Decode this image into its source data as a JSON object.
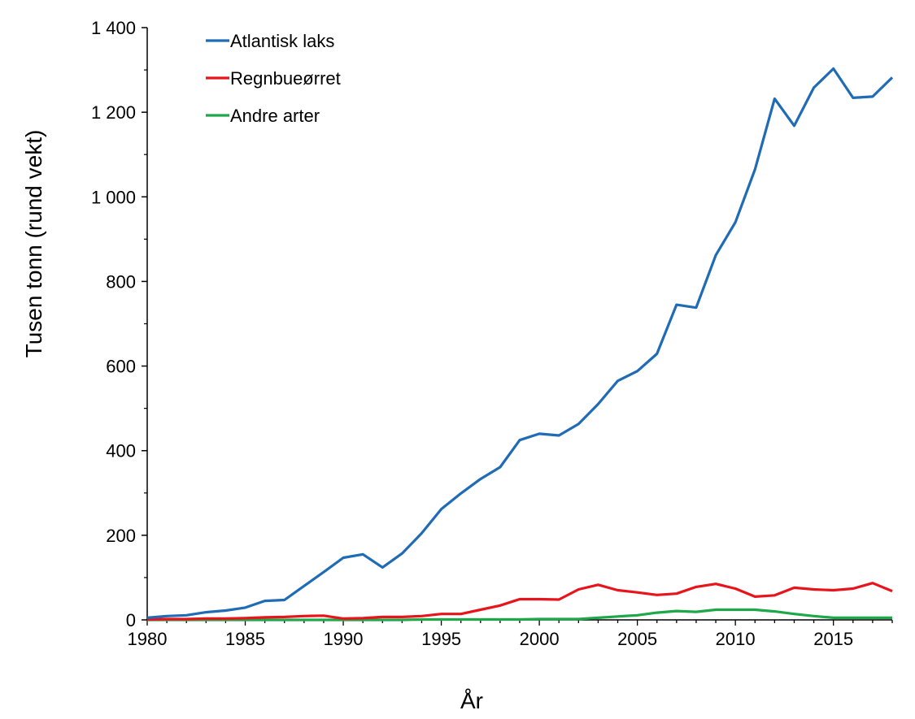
{
  "chart_data": {
    "type": "line",
    "xlabel": "År",
    "ylabel": "Tusen tonn (rund vekt)",
    "xlim": [
      1980,
      2018
    ],
    "ylim": [
      0,
      1400
    ],
    "x_ticks": [
      1980,
      1985,
      1990,
      1995,
      2000,
      2005,
      2010,
      2015
    ],
    "x_tick_labels": [
      "1980",
      "1985",
      "1990",
      "1995",
      "2000",
      "2005",
      "2010",
      "2015"
    ],
    "y_ticks": [
      0,
      200,
      400,
      600,
      800,
      1000,
      1200,
      1400
    ],
    "y_tick_labels": [
      "0",
      "200",
      "400",
      "600",
      "800",
      "1 000",
      "1 200",
      "1 400"
    ],
    "grid": false,
    "legend_position": "top-left",
    "x": [
      1980,
      1981,
      1982,
      1983,
      1984,
      1985,
      1986,
      1987,
      1988,
      1989,
      1990,
      1991,
      1992,
      1993,
      1994,
      1995,
      1996,
      1997,
      1998,
      1999,
      2000,
      2001,
      2002,
      2003,
      2004,
      2005,
      2006,
      2007,
      2008,
      2009,
      2010,
      2011,
      2012,
      2013,
      2014,
      2015,
      2016,
      2017,
      2018
    ],
    "series": [
      {
        "name": "Atlantisk laks",
        "color": "#1f6bb5",
        "values": [
          5,
          9,
          11,
          18,
          22,
          29,
          45,
          47,
          80,
          113,
          147,
          155,
          124,
          157,
          205,
          262,
          299,
          333,
          361,
          425,
          440,
          436,
          463,
          510,
          565,
          588,
          629,
          745,
          738,
          862,
          940,
          1065,
          1232,
          1168,
          1258,
          1303,
          1234,
          1237,
          1282
        ]
      },
      {
        "name": "Regnbueørret",
        "color": "#e8141b",
        "values": [
          1,
          2,
          2,
          3,
          3,
          4,
          6,
          7,
          9,
          10,
          3,
          4,
          7,
          7,
          9,
          14,
          14,
          24,
          34,
          49,
          49,
          48,
          72,
          83,
          70,
          65,
          59,
          62,
          78,
          85,
          74,
          55,
          58,
          76,
          72,
          70,
          74,
          87,
          68
        ]
      },
      {
        "name": "Andre arter",
        "color": "#1fa84a",
        "values": [
          0,
          0,
          0,
          0,
          0,
          0,
          0,
          0,
          0,
          0,
          0,
          0,
          0,
          0,
          1,
          1,
          1,
          1,
          1,
          1,
          2,
          2,
          2,
          5,
          8,
          11,
          17,
          21,
          19,
          24,
          24,
          24,
          20,
          14,
          9,
          5,
          5,
          5,
          5
        ]
      }
    ]
  }
}
